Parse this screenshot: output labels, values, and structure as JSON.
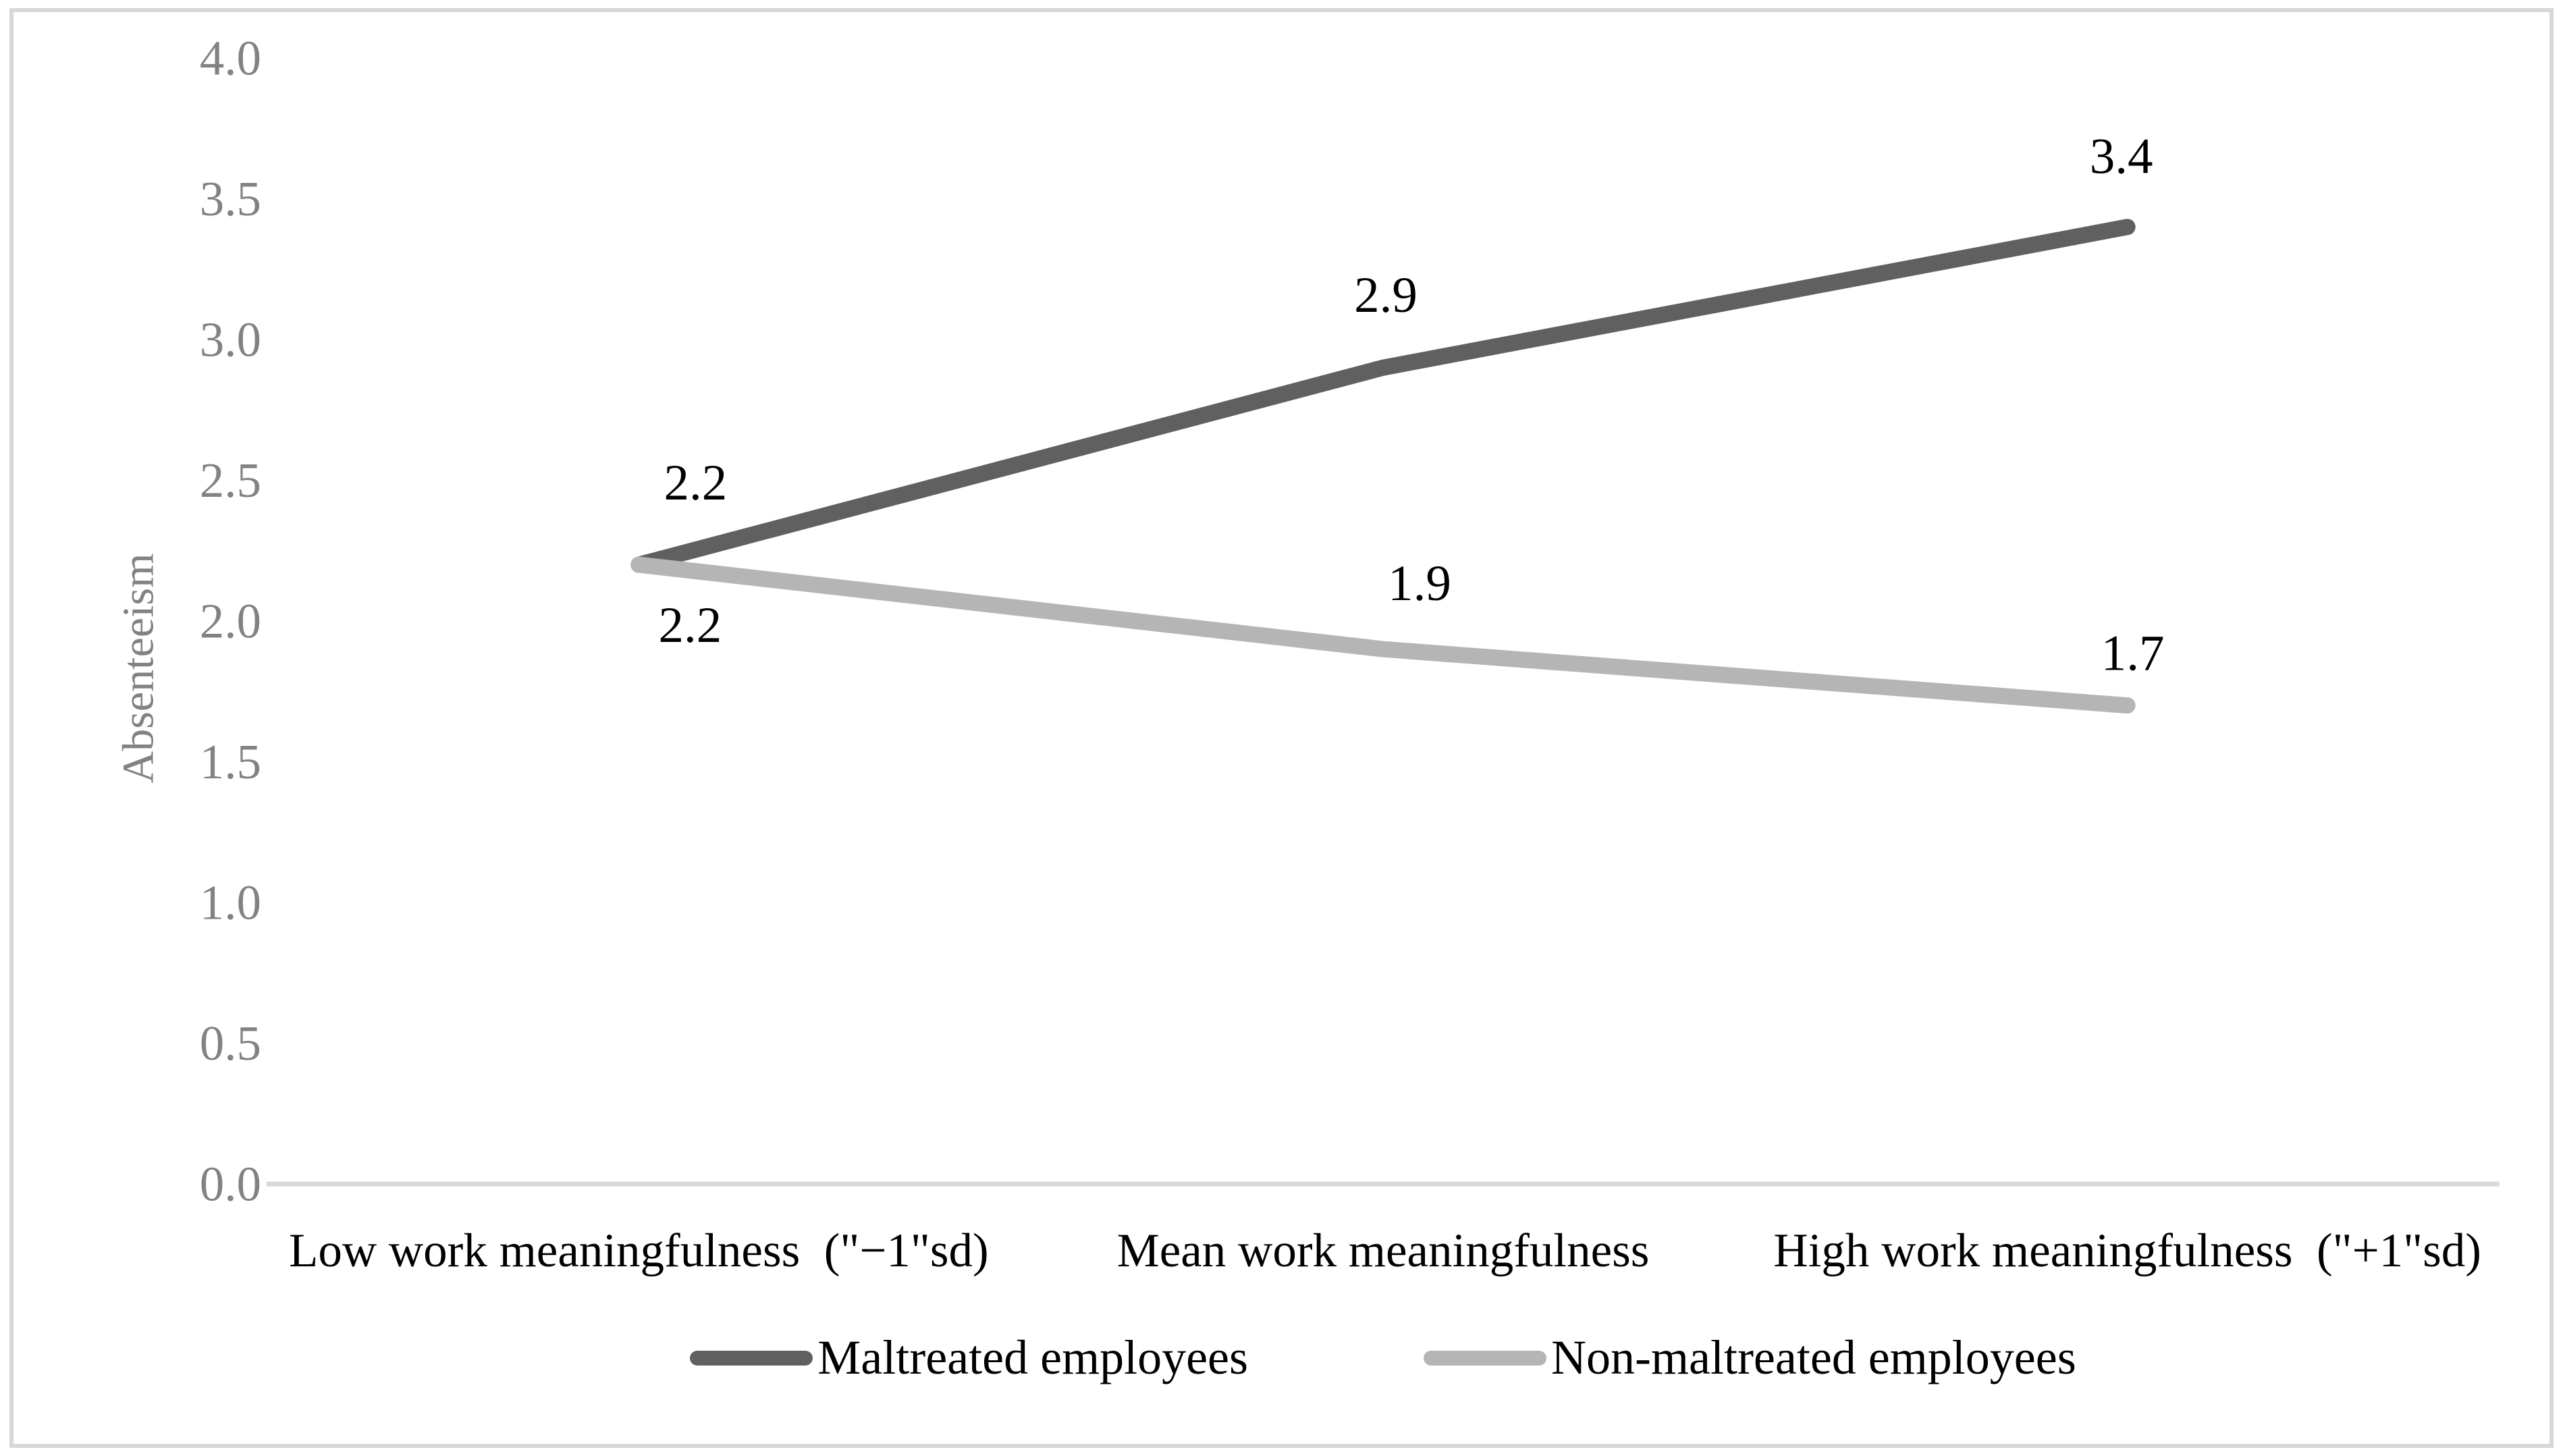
{
  "chart_data": {
    "type": "line",
    "title": "",
    "ylabel": "Absenteeism",
    "xlabel": "",
    "categories": [
      "Low work meaningfulness  (\"−1\"sd)",
      "Mean work meaningfulness",
      "High work meaningfulness  (\"+1\"sd)"
    ],
    "series": [
      {
        "name": "Maltreated employees",
        "color": "#606060",
        "values": [
          2.2,
          2.9,
          3.4
        ],
        "point_labels": [
          "2.2",
          "2.9",
          "3.4"
        ]
      },
      {
        "name": "Non-maltreated employees",
        "color": "#b5b5b5",
        "values": [
          2.2,
          1.9,
          1.7
        ],
        "point_labels": [
          "2.2",
          "1.9",
          "1.7"
        ]
      }
    ],
    "ylim": [
      0.0,
      4.0
    ],
    "ytick_step": 0.5,
    "ytick_labels": [
      "0.0",
      "0.5",
      "1.0",
      "1.5",
      "2.0",
      "2.5",
      "3.0",
      "3.5",
      "4.0"
    ],
    "grid": false,
    "legend_position": "bottom",
    "colors": {
      "axis_line": "#d9d9d9",
      "tick_label": "#828282",
      "axis_title": "#828282",
      "data_label": "#000000",
      "category_label": "#000000",
      "frame_border": "#d8d8d8",
      "background": "#ffffff"
    }
  }
}
